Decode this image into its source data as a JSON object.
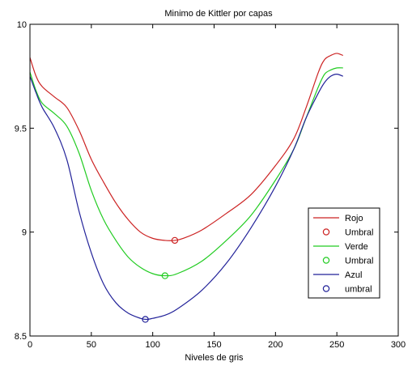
{
  "chart_data": {
    "type": "line",
    "title": "Minimo de Kittler por capas",
    "xlabel": "Niveles de gris",
    "ylabel": "",
    "xlim": [
      0,
      300
    ],
    "ylim": [
      8.5,
      10
    ],
    "xticks": [
      0,
      50,
      100,
      150,
      200,
      250,
      300
    ],
    "yticks": [
      8.5,
      9,
      9.5,
      10
    ],
    "xtick_labels": [
      "0",
      "50",
      "100",
      "150",
      "200",
      "250",
      "300"
    ],
    "ytick_labels": [
      "8.5",
      "9",
      "9.5",
      "10"
    ],
    "grid": false,
    "legend_position": "right",
    "series": [
      {
        "name": "Rojo",
        "color": "#cc2222",
        "marker": "line",
        "x": [
          0,
          5,
          10,
          20,
          30,
          40,
          50,
          60,
          70,
          80,
          90,
          100,
          110,
          118,
          125,
          140,
          160,
          180,
          200,
          215,
          225,
          235,
          240,
          245,
          250,
          255
        ],
        "y": [
          9.84,
          9.75,
          9.7,
          9.65,
          9.6,
          9.49,
          9.35,
          9.24,
          9.14,
          9.06,
          9.0,
          8.97,
          8.96,
          8.96,
          8.97,
          9.01,
          9.09,
          9.18,
          9.32,
          9.45,
          9.6,
          9.77,
          9.83,
          9.85,
          9.86,
          9.85
        ]
      },
      {
        "name": "Umbral",
        "color": "#cc2222",
        "marker": "circle",
        "x": [
          118
        ],
        "y": [
          8.96
        ]
      },
      {
        "name": "Verde",
        "color": "#22cc22",
        "marker": "line",
        "x": [
          0,
          5,
          10,
          20,
          30,
          40,
          50,
          60,
          70,
          80,
          90,
          100,
          110,
          120,
          140,
          160,
          180,
          200,
          215,
          225,
          235,
          240,
          245,
          250,
          255
        ],
        "y": [
          9.77,
          9.68,
          9.62,
          9.57,
          9.51,
          9.38,
          9.2,
          9.06,
          8.96,
          8.88,
          8.83,
          8.8,
          8.79,
          8.8,
          8.86,
          8.96,
          9.08,
          9.25,
          9.4,
          9.55,
          9.7,
          9.76,
          9.78,
          9.79,
          9.79
        ]
      },
      {
        "name": "Umbral",
        "color": "#22cc22",
        "marker": "circle",
        "x": [
          110
        ],
        "y": [
          8.79
        ]
      },
      {
        "name": "Azul",
        "color": "#222299",
        "marker": "line",
        "x": [
          0,
          5,
          10,
          20,
          30,
          40,
          50,
          60,
          70,
          80,
          90,
          95,
          100,
          110,
          120,
          140,
          160,
          180,
          200,
          215,
          225,
          235,
          240,
          245,
          250,
          255
        ],
        "y": [
          9.75,
          9.67,
          9.6,
          9.5,
          9.35,
          9.1,
          8.9,
          8.75,
          8.66,
          8.61,
          8.585,
          8.58,
          8.585,
          8.6,
          8.63,
          8.72,
          8.85,
          9.02,
          9.22,
          9.4,
          9.55,
          9.67,
          9.72,
          9.75,
          9.76,
          9.75
        ]
      },
      {
        "name": "umbral",
        "color": "#222299",
        "marker": "circle",
        "x": [
          94
        ],
        "y": [
          8.58
        ]
      }
    ]
  }
}
